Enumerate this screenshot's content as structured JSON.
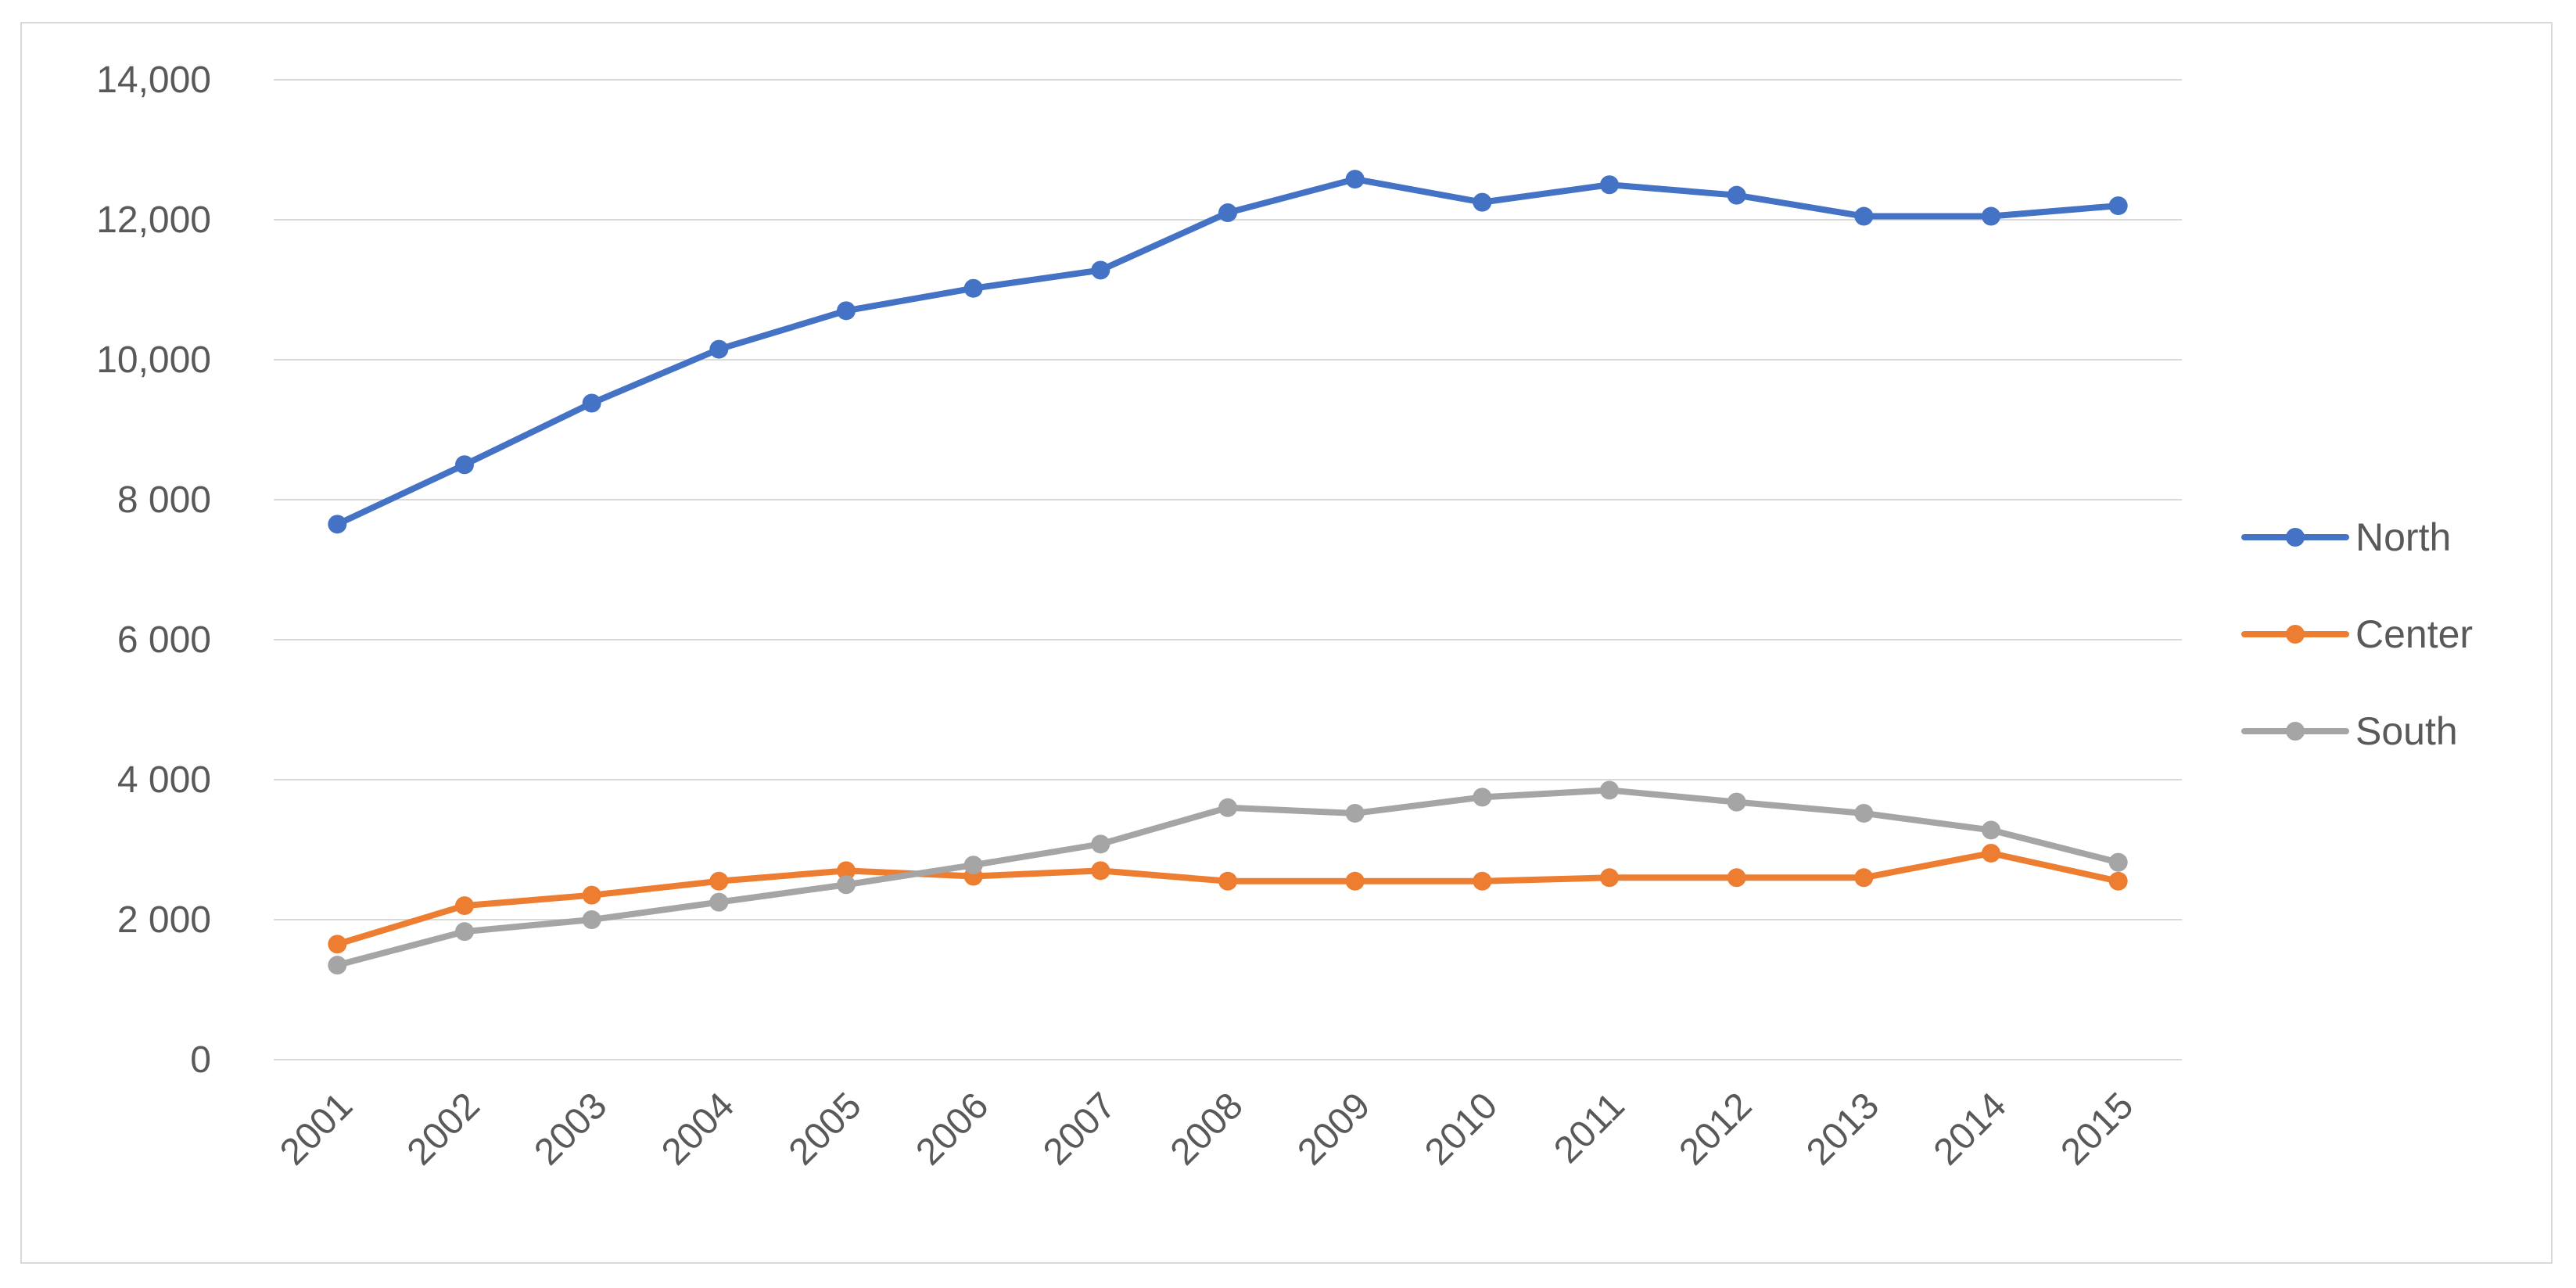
{
  "chart_data": {
    "type": "line",
    "title": "",
    "xlabel": "",
    "ylabel": "",
    "categories": [
      "2001",
      "2002",
      "2003",
      "2004",
      "2005",
      "2006",
      "2007",
      "2008",
      "2009",
      "2010",
      "2011",
      "2012",
      "2013",
      "2014",
      "2015"
    ],
    "ylim": [
      0,
      14000
    ],
    "yticks": [
      0,
      2000,
      4000,
      6000,
      8000,
      10000,
      12000,
      14000
    ],
    "ytick_labels": [
      "0",
      "2 000",
      "4 000",
      "6 000",
      "8 000",
      "10,000",
      "12,000",
      "14,000"
    ],
    "grid": true,
    "legend_position": "right",
    "series": [
      {
        "name": "North",
        "color": "#4472c4",
        "values": [
          7650,
          8500,
          9380,
          10150,
          10700,
          11020,
          11280,
          12100,
          12580,
          12250,
          12500,
          12350,
          12050,
          12050,
          12200
        ]
      },
      {
        "name": "Center",
        "color": "#ed7d31",
        "values": [
          1650,
          2200,
          2350,
          2550,
          2700,
          2620,
          2700,
          2550,
          2550,
          2550,
          2600,
          2600,
          2600,
          2950,
          2550
        ]
      },
      {
        "name": "South",
        "color": "#a5a5a5",
        "values": [
          1350,
          1830,
          2000,
          2250,
          2500,
          2780,
          3080,
          3600,
          3520,
          3750,
          3850,
          3680,
          3520,
          3280,
          2820
        ]
      }
    ]
  }
}
